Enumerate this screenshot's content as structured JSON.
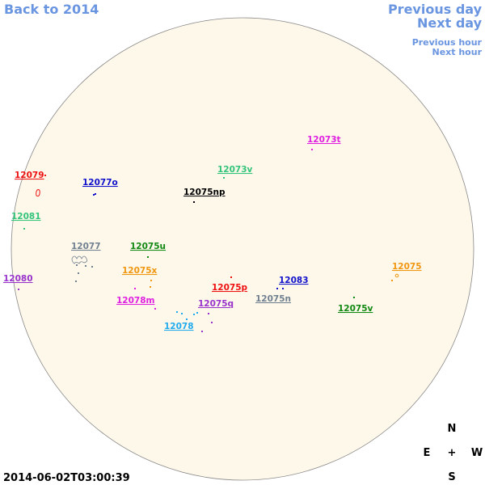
{
  "nav": {
    "back": "Back to 2014",
    "previous_day": "Previous day",
    "next_day": "Next day",
    "previous_hour": "Previous hour",
    "next_hour": "Next hour"
  },
  "timestamp": "2014-06-02T03:00:39",
  "compass": {
    "north": "N",
    "east": "E",
    "center": "+",
    "west": "W",
    "south": "S"
  },
  "regions": [
    {
      "label": "12073t",
      "color": "#e020e0"
    },
    {
      "label": "12073v",
      "color": "#33c47a"
    },
    {
      "label": "12079",
      "color": "#ee1111"
    },
    {
      "label": "12077o",
      "color": "#1111cc"
    },
    {
      "label": "12075np",
      "color": "#000000"
    },
    {
      "label": "12081",
      "color": "#33c47a"
    },
    {
      "label": "12077",
      "color": "#708090"
    },
    {
      "label": "12075u",
      "color": "#118811"
    },
    {
      "label": "12075x",
      "color": "#f0960f"
    },
    {
      "label": "12080",
      "color": "#9933cc"
    },
    {
      "label": "12075p",
      "color": "#ee1111"
    },
    {
      "label": "12083",
      "color": "#1111cc"
    },
    {
      "label": "12075n",
      "color": "#708090"
    },
    {
      "label": "12078m",
      "color": "#e020e0"
    },
    {
      "label": "12075q",
      "color": "#9933cc"
    },
    {
      "label": "12078",
      "color": "#22aaee"
    },
    {
      "label": "12075v",
      "color": "#118811"
    },
    {
      "label": "12075",
      "color": "#f0960f"
    }
  ]
}
